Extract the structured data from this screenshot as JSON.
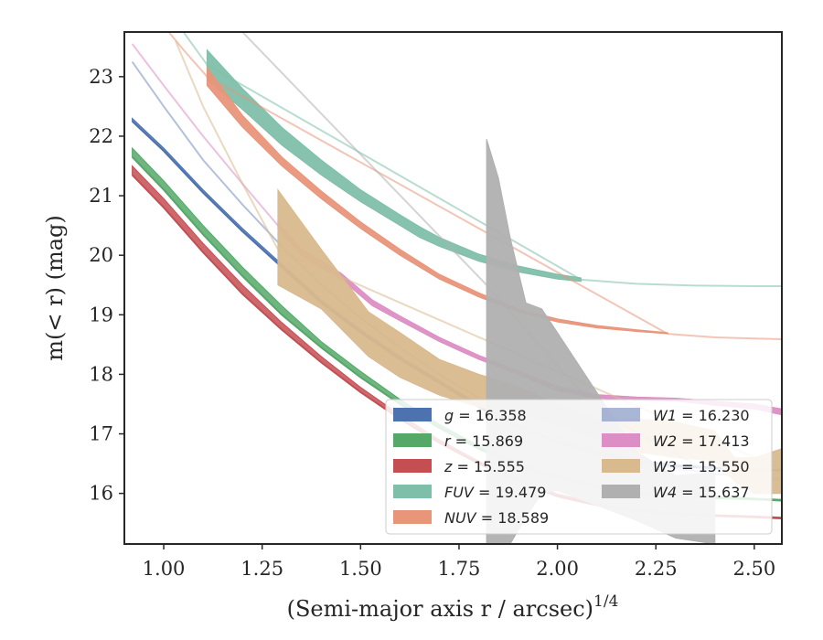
{
  "chart_data": {
    "type": "line",
    "xlabel_text": "(Semi-major axis r / arcsec)",
    "xlabel_sup": "1/4",
    "ylabel_text": "m(< r) (mag)",
    "xlim": [
      0.9,
      2.57
    ],
    "ylim": [
      23.75,
      15.15
    ],
    "y_inverted": true,
    "x_ticks": [
      "1.00",
      "1.25",
      "1.50",
      "1.75",
      "2.00",
      "2.25",
      "2.50"
    ],
    "y_ticks": [
      "16",
      "17",
      "18",
      "19",
      "20",
      "21",
      "22",
      "23"
    ],
    "grid": false,
    "legend_position": "lower-right",
    "series": [
      {
        "key": "g",
        "label": "g = 16.358",
        "color": "#4c72b0",
        "style": "solid",
        "x": [
          0.92,
          1.0,
          1.1,
          1.2,
          1.3,
          1.4,
          1.5,
          1.6,
          1.7,
          1.8,
          1.9,
          2.0,
          2.1,
          2.2,
          2.3,
          2.4,
          2.5,
          2.57
        ],
        "y": [
          22.25,
          21.75,
          21.05,
          20.4,
          19.8,
          19.2,
          18.7,
          18.25,
          17.85,
          17.45,
          17.1,
          16.85,
          16.65,
          16.52,
          16.45,
          16.42,
          16.4,
          16.38
        ],
        "y_low": [
          22.3,
          21.8,
          21.1,
          20.45,
          19.85,
          19.25,
          18.75,
          18.3,
          17.9,
          17.5,
          17.15,
          16.9,
          16.7,
          16.56,
          16.48,
          16.44,
          16.42,
          16.4
        ]
      },
      {
        "key": "r",
        "label": "r = 15.869",
        "color": "#55a868",
        "style": "solid",
        "x": [
          0.92,
          1.0,
          1.1,
          1.2,
          1.3,
          1.4,
          1.5,
          1.6,
          1.7,
          1.8,
          1.9,
          2.0,
          2.1,
          2.2,
          2.3,
          2.4,
          2.5,
          2.57
        ],
        "y": [
          21.65,
          21.1,
          20.35,
          19.65,
          19.0,
          18.45,
          17.95,
          17.5,
          17.1,
          16.75,
          16.45,
          16.25,
          16.1,
          16.0,
          15.95,
          15.92,
          15.9,
          15.88
        ],
        "y_low": [
          21.8,
          21.25,
          20.5,
          19.8,
          19.15,
          18.55,
          18.05,
          17.58,
          17.16,
          16.8,
          16.5,
          16.3,
          16.14,
          16.04,
          15.98,
          15.95,
          15.92,
          15.9
        ]
      },
      {
        "key": "z",
        "label": "z = 15.555",
        "color": "#c44e52",
        "style": "solid",
        "x": [
          0.92,
          1.0,
          1.1,
          1.2,
          1.3,
          1.4,
          1.5,
          1.6,
          1.7,
          1.8,
          1.9,
          2.0,
          2.1,
          2.2,
          2.3,
          2.4,
          2.5,
          2.57
        ],
        "y": [
          21.35,
          20.8,
          20.05,
          19.35,
          18.75,
          18.2,
          17.7,
          17.25,
          16.85,
          16.5,
          16.2,
          15.95,
          15.8,
          15.7,
          15.65,
          15.62,
          15.6,
          15.58
        ],
        "y_low": [
          21.5,
          20.95,
          20.2,
          19.5,
          18.87,
          18.3,
          17.78,
          17.32,
          16.9,
          16.54,
          16.24,
          15.99,
          15.84,
          15.73,
          15.68,
          15.64,
          15.62,
          15.6
        ]
      },
      {
        "key": "FUV",
        "label": "FUV = 19.479",
        "color": "#7fbfaa",
        "style": "band",
        "x": [
          1.11,
          1.2,
          1.3,
          1.4,
          1.5,
          1.6,
          1.65,
          1.7,
          1.8,
          1.9,
          2.0,
          2.06
        ],
        "y": [
          22.95,
          22.45,
          21.85,
          21.35,
          20.9,
          20.5,
          20.3,
          20.15,
          19.9,
          19.72,
          19.6,
          19.56
        ],
        "y_low": [
          23.45,
          22.8,
          22.15,
          21.6,
          21.1,
          20.68,
          20.48,
          20.3,
          20.02,
          19.82,
          19.68,
          19.62
        ],
        "ext_x": [
          0.92,
          1.0,
          1.05,
          1.11,
          2.06,
          2.2,
          2.35,
          2.5,
          2.57
        ],
        "ext_y": [
          24.6,
          24.1,
          23.75,
          23.2,
          19.59,
          19.52,
          19.49,
          19.48,
          19.48
        ]
      },
      {
        "key": "NUV",
        "label": "NUV = 18.589",
        "color": "#e8957a",
        "style": "band",
        "x": [
          1.11,
          1.2,
          1.3,
          1.4,
          1.5,
          1.6,
          1.7,
          1.8,
          1.9,
          2.0,
          2.1,
          2.2,
          2.28
        ],
        "y": [
          22.85,
          22.15,
          21.5,
          20.95,
          20.45,
          20.0,
          19.6,
          19.3,
          19.05,
          18.88,
          18.78,
          18.72,
          18.68
        ],
        "y_low": [
          23.15,
          22.35,
          21.65,
          21.08,
          20.56,
          20.1,
          19.68,
          19.37,
          19.1,
          18.93,
          18.82,
          18.75,
          18.7
        ],
        "ext_x": [
          0.92,
          1.0,
          1.05,
          1.11,
          2.28,
          2.4,
          2.5,
          2.57
        ],
        "ext_y": [
          24.4,
          23.85,
          23.45,
          23.0,
          18.68,
          18.62,
          18.6,
          18.59
        ]
      },
      {
        "key": "W1",
        "label": "W1 = 16.230",
        "color": "#8c9ec8",
        "style": "faint",
        "x": [
          0.92,
          1.0,
          1.1,
          1.2,
          1.3,
          1.4,
          1.5,
          1.6,
          1.7,
          1.8,
          1.9,
          2.0,
          2.1,
          2.2,
          2.3,
          2.4,
          2.5,
          2.57
        ],
        "y": [
          23.25,
          22.5,
          21.6,
          20.85,
          20.15,
          19.5,
          18.95,
          18.45,
          18.0,
          17.6,
          17.25,
          16.95,
          16.72,
          16.55,
          16.42,
          16.33,
          16.27,
          16.23
        ]
      },
      {
        "key": "W2",
        "label": "W2 = 17.413",
        "color": "#dd8ec4",
        "style": "band",
        "x": [
          1.29,
          1.35,
          1.45,
          1.53,
          1.6,
          1.7,
          1.8,
          1.9,
          2.0,
          2.1,
          2.2,
          2.3,
          2.4,
          2.5,
          2.57
        ],
        "y": [
          20.45,
          20.0,
          19.6,
          19.15,
          18.9,
          18.55,
          18.25,
          18.0,
          17.72,
          17.6,
          17.57,
          17.55,
          17.48,
          17.42,
          17.32
        ],
        "y_low": [
          20.55,
          20.1,
          19.7,
          19.25,
          18.98,
          18.62,
          18.32,
          18.06,
          17.8,
          17.66,
          17.62,
          17.6,
          17.55,
          17.5,
          17.42
        ],
        "ext_x": [
          0.92,
          1.0,
          1.1,
          1.2,
          1.29
        ],
        "ext_y": [
          23.55,
          22.85,
          22.0,
          21.2,
          20.5
        ]
      },
      {
        "key": "W3",
        "label": "W3 = 15.550",
        "color": "#d9b98e",
        "style": "band",
        "x": [
          1.29,
          1.4,
          1.52,
          1.6,
          1.7,
          1.8,
          1.9,
          2.0,
          2.1,
          2.2,
          2.3,
          2.4,
          2.45,
          2.5,
          2.57
        ],
        "y": [
          19.5,
          19.1,
          18.3,
          17.95,
          17.65,
          17.45,
          17.3,
          17.15,
          16.9,
          16.7,
          16.6,
          16.55,
          16.2,
          16.0,
          16.0
        ],
        "y_low": [
          21.1,
          20.1,
          19.05,
          18.7,
          18.25,
          18.0,
          17.8,
          17.5,
          17.25,
          17.25,
          17.2,
          17.05,
          16.6,
          16.6,
          16.75
        ],
        "ext_x": [
          1.03,
          1.1,
          1.2,
          1.29,
          2.57
        ],
        "ext_y": [
          23.6,
          22.5,
          21.2,
          20.1,
          16.4
        ]
      },
      {
        "key": "W4",
        "label": "W4 = 15.637",
        "color": "#b0b0b0",
        "style": "band",
        "x": [
          1.82,
          1.85,
          1.88,
          1.92,
          1.96,
          2.0,
          2.1,
          2.2,
          2.3,
          2.4
        ],
        "y": [
          15.15,
          15.15,
          15.15,
          15.6,
          16.0,
          16.05,
          15.8,
          15.55,
          15.25,
          15.15
        ],
        "y_low": [
          21.95,
          21.3,
          20.3,
          19.2,
          19.1,
          18.7,
          17.7,
          16.7,
          16.3,
          16.35
        ],
        "ext_x": [
          1.2,
          1.82,
          2.1,
          2.4
        ],
        "ext_y": [
          23.75,
          19.5,
          17.4,
          16.3
        ]
      }
    ]
  }
}
